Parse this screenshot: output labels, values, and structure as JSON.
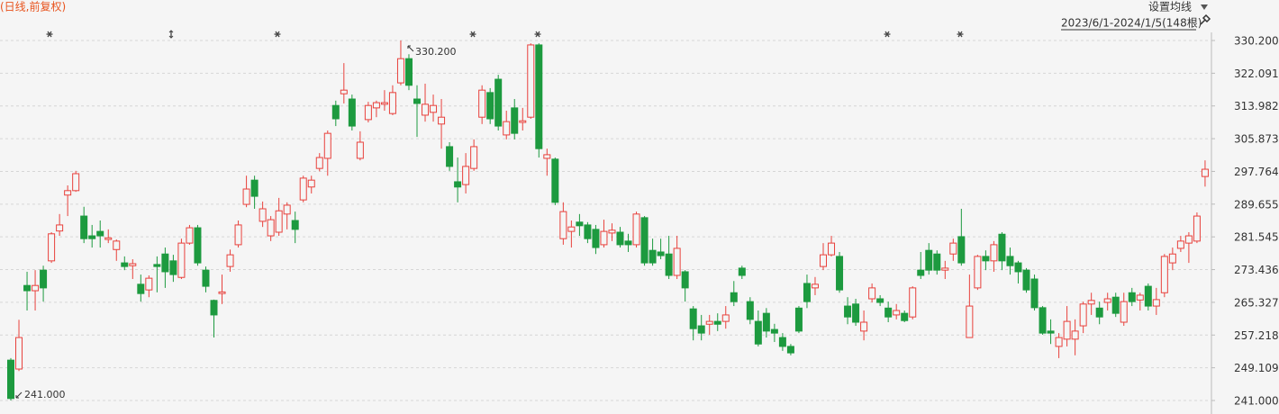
{
  "chart_data": {
    "type": "candlestick",
    "subtitle": "(日线,前复权)",
    "button": "设置均线",
    "period": "2023/6/1-2024/1/5(148根)",
    "up_color": "#e8413c",
    "down_color": "#1d9a3f",
    "ylim": [
      241.0,
      330.2
    ],
    "yticks": [
      {
        "value": 330.2,
        "label": "330.200"
      },
      322.091,
      313.982,
      305.873,
      297.764,
      289.655,
      281.545,
      273.436,
      265.327,
      257.218,
      249.109,
      {
        "value": 241.0,
        "label": "241.000"
      }
    ],
    "grid": true,
    "max_label": {
      "value": 330.2,
      "label": "330.200"
    },
    "min_label": {
      "value": 241.0,
      "label": "241.000"
    },
    "open": [
      251.0,
      248.8,
      269.5,
      268.2,
      273.3,
      275.6,
      283.0,
      291.9,
      293.0,
      286.7,
      281.8,
      282.9,
      280.9,
      278.4,
      275.1,
      274.4,
      269.8,
      268.4,
      274.7,
      277.3,
      275.6,
      271.5,
      280.0,
      283.8,
      273.3,
      265.8,
      267.5,
      274.2,
      279.6,
      289.6,
      295.6,
      285.4,
      281.8,
      282.7,
      287.2,
      285.6,
      290.7,
      293.9,
      298.5,
      301.0,
      314.1,
      317.0,
      315.7,
      301.0,
      310.6,
      313.5,
      314.4,
      312.1,
      319.7,
      325.7,
      315.7,
      311.7,
      312.4,
      309.5,
      303.9,
      295.2,
      294.5,
      298.5,
      311.2,
      317.3,
      320.6,
      306.8,
      313.5,
      309.9,
      311.2,
      329.1,
      301.0,
      300.8,
      281.1,
      282.9,
      285.2,
      284.5,
      283.4,
      279.6,
      282.5,
      282.7,
      280.5,
      279.6,
      286.3,
      278.2,
      277.8,
      277.3,
      272.0,
      272.9,
      263.7,
      259.5,
      259.9,
      260.6,
      260.6,
      267.7,
      273.8,
      265.5,
      260.6,
      262.6,
      258.6,
      256.6,
      254.4,
      263.9,
      270.0,
      268.9,
      274.2,
      277.1,
      276.7,
      264.4,
      264.9,
      258.2,
      266.2,
      266.2,
      263.9,
      262.2,
      262.6,
      261.7,
      273.3,
      278.2,
      277.3,
      273.3,
      277.3,
      281.6,
      256.6,
      268.9,
      276.7,
      275.6,
      282.2,
      276.7,
      275.1,
      273.3,
      271.1,
      264.0,
      258.2,
      254.4,
      256.2,
      256.2,
      259.5,
      264.9,
      263.9,
      265.3,
      266.6,
      260.4,
      267.7,
      265.9,
      269.3,
      264.4,
      267.7,
      275.1,
      278.7,
      280.0,
      280.5,
      296.5
    ],
    "high": [
      251.5,
      261.0,
      272.9,
      273.3,
      274.4,
      282.7,
      287.2,
      294.3,
      297.9,
      289.0,
      284.5,
      285.6,
      283.4,
      280.9,
      276.7,
      276.0,
      272.2,
      272.0,
      276.7,
      278.9,
      277.1,
      281.1,
      284.5,
      284.5,
      274.2,
      266.0,
      272.2,
      278.4,
      285.6,
      296.7,
      296.7,
      290.3,
      286.7,
      291.2,
      290.1,
      287.8,
      296.7,
      296.7,
      302.3,
      307.9,
      315.3,
      324.6,
      316.8,
      307.7,
      315.0,
      315.3,
      317.9,
      319.1,
      330.2,
      326.8,
      319.1,
      319.5,
      316.8,
      315.7,
      305.0,
      301.2,
      302.3,
      305.7,
      319.1,
      318.4,
      321.7,
      312.8,
      315.7,
      313.5,
      329.5,
      329.5,
      303.4,
      301.2,
      290.1,
      285.6,
      287.2,
      285.2,
      284.5,
      285.8,
      284.9,
      284.0,
      282.3,
      287.8,
      286.7,
      281.1,
      281.1,
      281.8,
      281.8,
      273.3,
      264.4,
      262.2,
      262.2,
      262.6,
      264.4,
      270.6,
      274.4,
      266.6,
      263.3,
      263.9,
      260.0,
      257.7,
      255.0,
      264.4,
      272.2,
      271.6,
      280.0,
      281.8,
      277.8,
      266.6,
      266.2,
      263.3,
      270.0,
      267.1,
      265.5,
      264.9,
      263.3,
      269.3,
      277.8,
      280.0,
      278.2,
      275.6,
      281.1,
      288.5,
      272.2,
      277.1,
      278.2,
      280.5,
      282.7,
      278.9,
      275.6,
      273.8,
      272.2,
      264.4,
      261.1,
      257.7,
      264.4,
      261.1,
      265.5,
      267.7,
      265.5,
      267.7,
      267.7,
      267.7,
      268.9,
      267.7,
      270.0,
      268.9,
      277.3,
      278.9,
      281.8,
      282.7,
      287.6,
      300.5
    ],
    "low": [
      241.0,
      248.3,
      263.3,
      263.3,
      265.5,
      275.1,
      281.8,
      286.7,
      292.7,
      280.0,
      278.9,
      278.9,
      280.0,
      275.6,
      273.3,
      271.1,
      265.5,
      266.6,
      267.8,
      268.9,
      270.4,
      271.1,
      279.6,
      274.4,
      267.8,
      256.6,
      264.9,
      272.9,
      278.9,
      288.9,
      288.5,
      284.0,
      280.5,
      281.8,
      283.4,
      280.0,
      290.1,
      292.3,
      297.8,
      296.7,
      309.0,
      314.6,
      307.9,
      300.5,
      309.9,
      311.2,
      312.8,
      311.7,
      319.1,
      317.9,
      306.3,
      310.1,
      310.1,
      303.4,
      297.9,
      290.1,
      292.3,
      297.9,
      309.5,
      309.5,
      307.9,
      305.7,
      305.7,
      307.9,
      310.8,
      301.2,
      296.7,
      289.4,
      279.6,
      278.9,
      281.8,
      280.0,
      277.3,
      278.9,
      280.5,
      278.9,
      277.8,
      278.9,
      274.4,
      274.4,
      276.0,
      271.1,
      271.1,
      265.5,
      255.9,
      255.9,
      257.3,
      258.2,
      258.8,
      264.4,
      271.1,
      259.9,
      254.4,
      256.6,
      255.5,
      253.3,
      252.2,
      257.7,
      263.9,
      267.1,
      273.3,
      276.7,
      267.7,
      259.9,
      259.5,
      255.9,
      265.3,
      264.4,
      260.4,
      261.1,
      260.4,
      261.1,
      271.1,
      272.2,
      272.2,
      271.1,
      275.6,
      274.4,
      256.6,
      268.4,
      273.3,
      272.9,
      273.3,
      272.2,
      270.0,
      267.7,
      263.3,
      257.3,
      255.0,
      251.5,
      254.4,
      252.2,
      257.7,
      262.2,
      259.9,
      263.3,
      261.7,
      259.5,
      264.4,
      263.3,
      263.3,
      262.2,
      266.6,
      273.3,
      277.8,
      275.1,
      280.0,
      294.0
    ],
    "close": [
      241.5,
      256.6,
      268.2,
      269.5,
      268.9,
      282.3,
      284.5,
      293.0,
      297.2,
      281.1,
      281.1,
      281.8,
      281.3,
      280.5,
      274.2,
      274.9,
      267.5,
      271.3,
      274.2,
      272.9,
      272.2,
      280.0,
      283.8,
      275.1,
      269.3,
      262.2,
      267.9,
      277.1,
      284.5,
      293.4,
      291.6,
      288.5,
      285.8,
      288.0,
      289.4,
      283.4,
      296.1,
      295.6,
      301.2,
      307.2,
      310.8,
      317.9,
      309.0,
      305.0,
      314.1,
      314.8,
      314.8,
      317.3,
      325.7,
      319.1,
      314.6,
      314.4,
      314.1,
      311.2,
      299.0,
      293.9,
      299.0,
      303.9,
      317.9,
      310.8,
      309.0,
      310.1,
      307.2,
      310.3,
      329.1,
      303.4,
      301.9,
      290.1,
      287.8,
      284.0,
      284.3,
      281.1,
      278.9,
      282.9,
      283.2,
      279.6,
      279.6,
      287.2,
      275.1,
      275.1,
      276.9,
      272.0,
      278.7,
      268.9,
      258.8,
      257.7,
      260.6,
      259.9,
      262.2,
      265.5,
      272.0,
      261.1,
      255.0,
      258.2,
      257.7,
      254.4,
      252.8,
      258.2,
      265.5,
      269.8,
      277.1,
      280.0,
      268.4,
      261.7,
      260.4,
      260.4,
      268.9,
      265.3,
      261.7,
      263.3,
      260.8,
      268.9,
      272.0,
      273.3,
      273.3,
      273.8,
      280.0,
      275.1,
      264.4,
      276.7,
      275.6,
      279.6,
      275.6,
      274.4,
      272.9,
      268.4,
      264.0,
      257.7,
      257.7,
      256.6,
      260.6,
      258.2,
      264.9,
      265.8,
      261.7,
      266.2,
      262.6,
      265.5,
      265.5,
      267.1,
      264.4,
      266.0,
      276.7,
      277.3,
      280.5,
      281.8,
      286.7,
      298.3
    ]
  }
}
